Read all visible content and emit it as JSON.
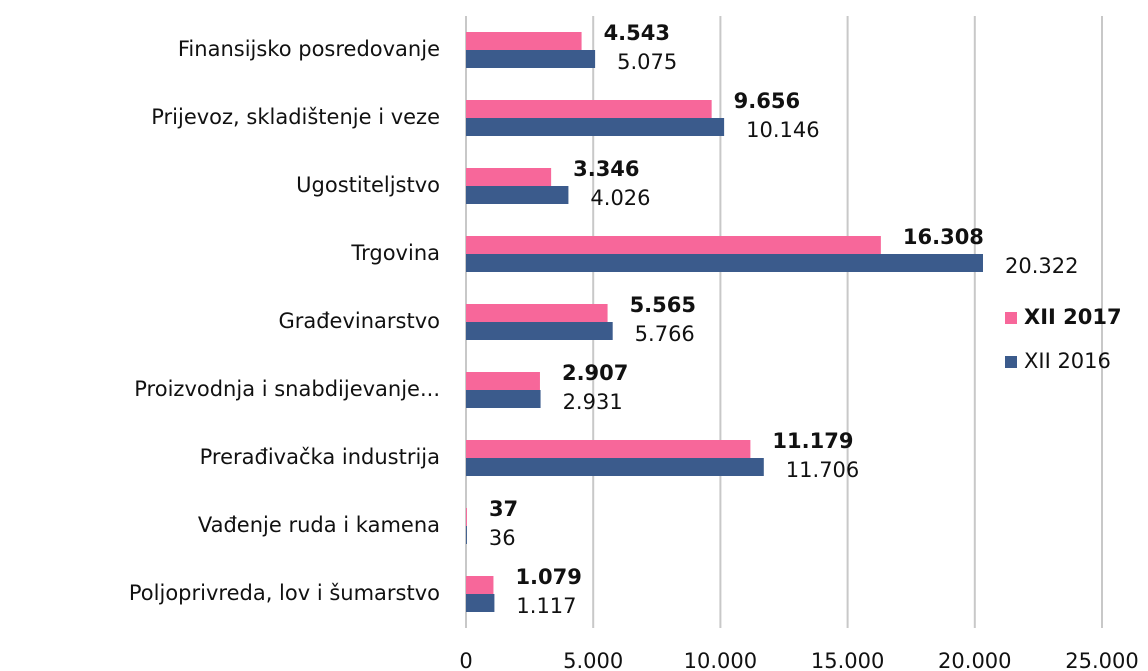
{
  "chart_data": {
    "type": "bar",
    "orientation": "horizontal",
    "categories": [
      "Finansijsko posredovanje",
      "Prijevoz, skladištenje i veze",
      "Ugostiteljstvo",
      "Trgovina",
      "Građevinarstvo",
      "Proizvodnja i snabdijevanje...",
      "Prerađivačka industrija",
      "Vađenje ruda i kamena",
      "Poljoprivreda, lov i šumarstvo"
    ],
    "series": [
      {
        "name": "XII 2017",
        "color": "#f7679a",
        "values": [
          4543,
          9656,
          3346,
          16308,
          5565,
          2907,
          11179,
          37,
          1079
        ],
        "value_labels": [
          "4.543",
          "9.656",
          "3.346",
          "16.308",
          "5.565",
          "2.907",
          "11.179",
          "37",
          "1.079"
        ]
      },
      {
        "name": "XII 2016",
        "color": "#3b5b8c",
        "values": [
          5075,
          10146,
          4026,
          20322,
          5766,
          2931,
          11706,
          36,
          1117
        ],
        "value_labels": [
          "5.075",
          "10.146",
          "4.026",
          "20.322",
          "5.766",
          "2.931",
          "11.706",
          "36",
          "1.117"
        ]
      }
    ],
    "xlim": [
      0,
      25000
    ],
    "xticks": [
      0,
      {
        "value": 5000,
        "label": "5.000"
      },
      {
        "value": 10000,
        "label": "10.000"
      },
      {
        "value": 15000,
        "label": "15.000"
      },
      {
        "value": 20000,
        "label": "20.000"
      },
      {
        "value": 25000,
        "label": "25.000"
      }
    ],
    "grid": true,
    "legend": "right"
  }
}
